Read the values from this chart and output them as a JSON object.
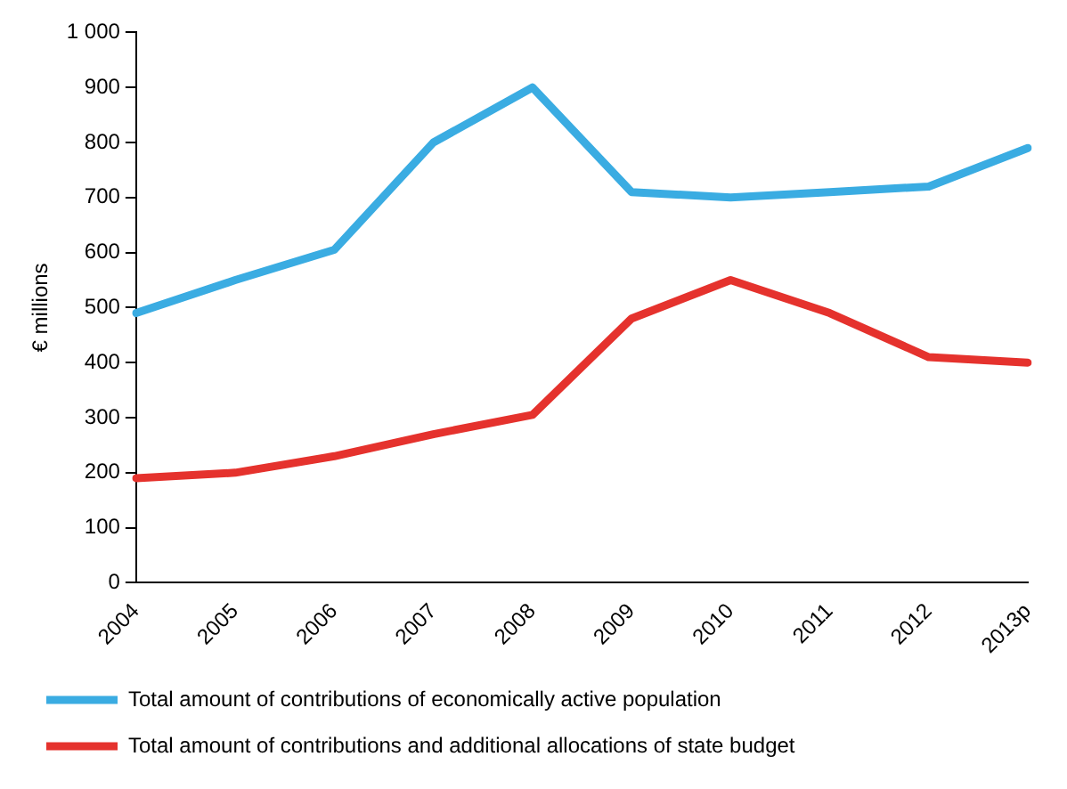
{
  "chart_data": {
    "type": "line",
    "ylabel": "€ millions",
    "categories": [
      "2004",
      "2005",
      "2006",
      "2007",
      "2008",
      "2009",
      "2010",
      "2011",
      "2012",
      "2013p"
    ],
    "series": [
      {
        "name": "Total amount of contributions of economically active population",
        "color": "#3aace2",
        "values": [
          490,
          550,
          605,
          800,
          900,
          710,
          700,
          710,
          720,
          790
        ]
      },
      {
        "name": "Total amount of contributions and additional allocations of state budget",
        "color": "#e5322d",
        "values": [
          190,
          200,
          230,
          270,
          305,
          480,
          550,
          490,
          410,
          400
        ]
      }
    ],
    "ylim": [
      0,
      1000
    ],
    "yticks": [
      0,
      100,
      200,
      300,
      400,
      500,
      600,
      700,
      800,
      900,
      {
        "value": 1000,
        "label": "1 000"
      }
    ],
    "grid": false,
    "legend": "bottom",
    "marker": "none",
    "line_style": "solid"
  }
}
